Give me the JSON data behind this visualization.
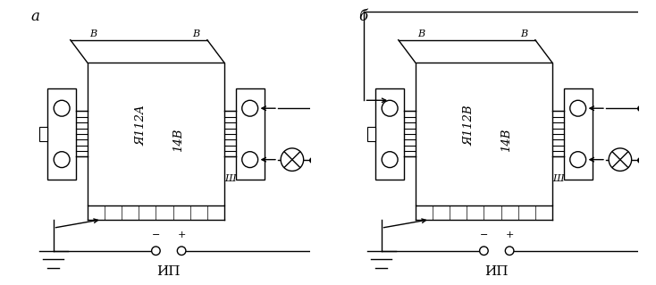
{
  "background": "#ffffff",
  "lc": "#000000",
  "label_a": "a",
  "label_b": "б",
  "text_a1": "Я112А",
  "text_a2": "14В",
  "text_b1": "Я112В",
  "text_b2": "14В",
  "B_label": "В",
  "Sh_label": "Ш",
  "IP_label": "ИП",
  "minus": "−",
  "plus": "+"
}
